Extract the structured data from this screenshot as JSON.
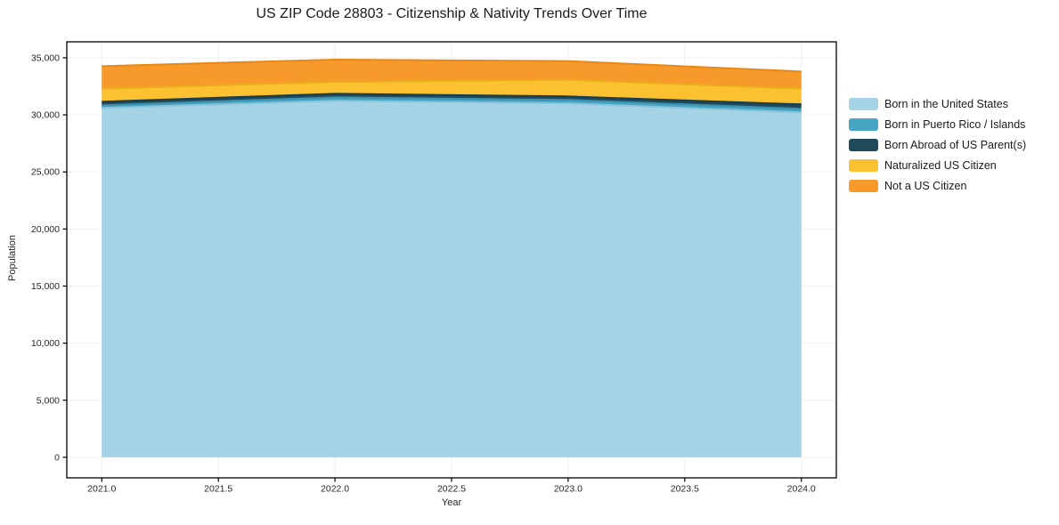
{
  "chart_data": {
    "type": "area",
    "stacked": true,
    "title": "US ZIP Code 28803 - Citizenship & Nativity Trends Over Time",
    "xlabel": "Year",
    "ylabel": "Population",
    "x": [
      2021,
      2022,
      2023,
      2024
    ],
    "series": [
      {
        "name": "Born in the United States",
        "color": "#a4d3e6",
        "edge_color": "#8fc3da",
        "values": [
          30600,
          31230,
          31000,
          30210
        ]
      },
      {
        "name": "Born in Puerto Rico / Islands",
        "color": "#47a6c3",
        "edge_color": "#3b92ae",
        "values": [
          240,
          310,
          310,
          320
        ]
      },
      {
        "name": "Born Abroad of US Parent(s)",
        "color": "#204a5c",
        "edge_color": "#193d4d",
        "values": [
          310,
          310,
          310,
          390
        ]
      },
      {
        "name": "Naturalized US Citizen",
        "color": "#fcc130",
        "edge_color": "#e8ad1c",
        "values": [
          1150,
          1040,
          1460,
          1380
        ]
      },
      {
        "name": "Not a US Citizen",
        "color": "#f79a2b",
        "edge_color": "#e78816",
        "values": [
          1970,
          1950,
          1630,
          1500
        ]
      }
    ],
    "x_ticks": [
      2021.0,
      2021.5,
      2022.0,
      2022.5,
      2023.0,
      2023.5,
      2024.0
    ],
    "x_tick_labels": [
      "2021.0",
      "2021.5",
      "2022.0",
      "2022.5",
      "2023.0",
      "2023.5",
      "2024.0"
    ],
    "y_ticks": [
      0,
      5000,
      10000,
      15000,
      20000,
      25000,
      30000,
      35000
    ],
    "y_tick_labels": [
      "0",
      "5,000",
      "10,000",
      "15,000",
      "20,000",
      "25,000",
      "30,000",
      "35,000"
    ],
    "xlim": [
      2020.85,
      2024.15
    ],
    "ylim": [
      -1800,
      36400
    ],
    "grid": true,
    "legend_position": "right"
  },
  "colors": {
    "background": "#ffffff",
    "spine": "#000000",
    "grid": "#efefef",
    "tick": "#000000",
    "text": "#262626"
  }
}
